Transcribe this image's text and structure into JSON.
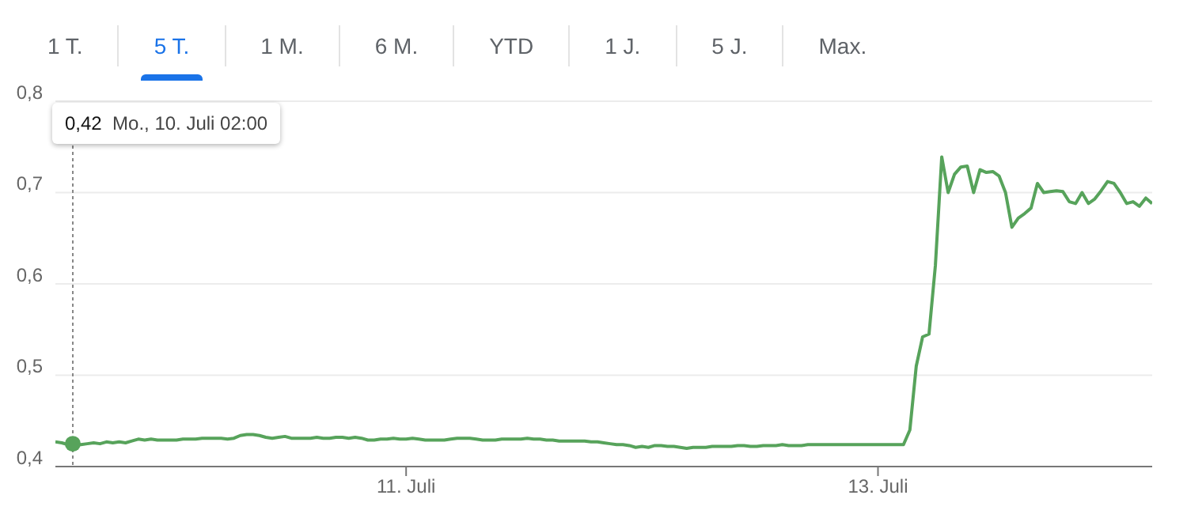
{
  "chart_data": {
    "type": "line",
    "categories": [
      null,
      null,
      null,
      null,
      null,
      null,
      null,
      null,
      null,
      null,
      null,
      null,
      null,
      null,
      null,
      null,
      null,
      null,
      null,
      null,
      null,
      null,
      null,
      null,
      null,
      null,
      null,
      null,
      null,
      null,
      null,
      null,
      null,
      null,
      null,
      null,
      null,
      null,
      null,
      null,
      null,
      null,
      null,
      null,
      null,
      null,
      null,
      null,
      null,
      null,
      null,
      null,
      null,
      null,
      null,
      "11. Juli",
      null,
      null,
      null,
      null,
      null,
      null,
      null,
      null,
      null,
      null,
      null,
      null,
      null,
      null,
      null,
      null,
      null,
      null,
      null,
      null,
      null,
      null,
      null,
      null,
      null,
      null,
      null,
      null,
      null,
      null,
      null,
      null,
      null,
      null,
      null,
      null,
      null,
      null,
      null,
      null,
      null,
      null,
      null,
      null,
      null,
      null,
      null,
      null,
      null,
      null,
      null,
      null,
      null,
      null,
      null,
      null,
      null,
      null,
      null,
      null,
      null,
      null,
      null,
      null,
      null,
      null,
      null,
      null,
      null,
      null,
      null,
      null,
      null,
      "13. Juli",
      null,
      null,
      null,
      null,
      null,
      null,
      null,
      null,
      null,
      null,
      null,
      null,
      null,
      null,
      null,
      null,
      null,
      null,
      null,
      null,
      null,
      null,
      null,
      null,
      null,
      null,
      null,
      null,
      null,
      null,
      null,
      null,
      null,
      null,
      null,
      null,
      null,
      null,
      null,
      null,
      null,
      null,
      null
    ],
    "series": [
      {
        "color": "#57a35b",
        "values": [
          0.427,
          0.426,
          0.424,
          0.425,
          0.424,
          0.425,
          0.426,
          0.425,
          0.427,
          0.426,
          0.427,
          0.426,
          0.428,
          0.43,
          0.429,
          0.43,
          0.429,
          0.429,
          0.429,
          0.429,
          0.43,
          0.43,
          0.43,
          0.431,
          0.431,
          0.431,
          0.431,
          0.43,
          0.431,
          0.434,
          0.435,
          0.435,
          0.434,
          0.432,
          0.431,
          0.432,
          0.433,
          0.431,
          0.431,
          0.431,
          0.431,
          0.432,
          0.431,
          0.431,
          0.432,
          0.432,
          0.431,
          0.432,
          0.431,
          0.429,
          0.429,
          0.43,
          0.43,
          0.431,
          0.43,
          0.43,
          0.431,
          0.43,
          0.429,
          0.429,
          0.429,
          0.429,
          0.43,
          0.431,
          0.431,
          0.431,
          0.43,
          0.429,
          0.429,
          0.429,
          0.43,
          0.43,
          0.43,
          0.43,
          0.431,
          0.43,
          0.43,
          0.429,
          0.429,
          0.428,
          0.428,
          0.428,
          0.428,
          0.428,
          0.427,
          0.427,
          0.426,
          0.425,
          0.424,
          0.424,
          0.423,
          0.421,
          0.422,
          0.421,
          0.423,
          0.423,
          0.422,
          0.422,
          0.421,
          0.42,
          0.421,
          0.421,
          0.421,
          0.422,
          0.422,
          0.422,
          0.422,
          0.423,
          0.423,
          0.422,
          0.422,
          0.423,
          0.423,
          0.423,
          0.424,
          0.423,
          0.423,
          0.423,
          0.424,
          0.424,
          0.424,
          0.424,
          0.424,
          0.424,
          0.424,
          0.424,
          0.424,
          0.424,
          0.424,
          0.424,
          0.424,
          0.424,
          0.424,
          0.424,
          0.44,
          0.51,
          0.542,
          0.545,
          0.62,
          0.739,
          0.7,
          0.72,
          0.728,
          0.729,
          0.7,
          0.725,
          0.722,
          0.723,
          0.718,
          0.7,
          0.662,
          0.672,
          0.677,
          0.683,
          0.71,
          0.7,
          0.701,
          0.702,
          0.701,
          0.69,
          0.688,
          0.7,
          0.688,
          0.693,
          0.702,
          0.712,
          0.71,
          0.7,
          0.688,
          0.69,
          0.685,
          0.694,
          0.688
        ]
      }
    ],
    "ylim": [
      0.4,
      0.8
    ],
    "yticks": [
      {
        "value": 0.4,
        "label": "0,4"
      },
      {
        "value": 0.5,
        "label": "0,5"
      },
      {
        "value": 0.6,
        "label": "0,6"
      },
      {
        "value": 0.7,
        "label": "0,7"
      },
      {
        "value": 0.8,
        "label": "0,8"
      }
    ],
    "grid": "y",
    "marker": "none",
    "line_style": "solid",
    "annotations": [
      "1 T.",
      "5 T.",
      "1 M.",
      "6 M.",
      "YTD",
      "1 J.",
      "5 J.",
      "Max.",
      "0,42 Mo., 10. Juli 02:00"
    ]
  }
}
